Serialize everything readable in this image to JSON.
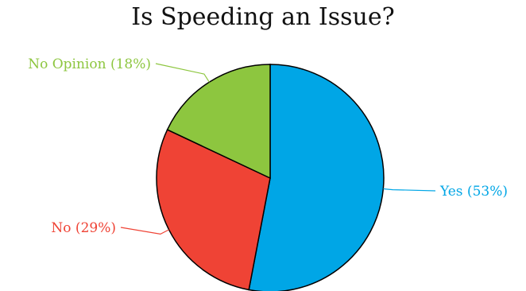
{
  "chart_data": {
    "type": "pie",
    "title": "Is Speeding an Issue?",
    "slices": [
      {
        "label": "Yes (53%)",
        "category": "Yes",
        "value": 53,
        "color": "#00a6e6"
      },
      {
        "label": "No (29%)",
        "category": "No",
        "value": 29,
        "color": "#ef4335"
      },
      {
        "label": "No Opinion (18%)",
        "category": "No Opinion",
        "value": 18,
        "color": "#8dc63f"
      }
    ],
    "legend": "none",
    "stroke_color": "#000000"
  }
}
